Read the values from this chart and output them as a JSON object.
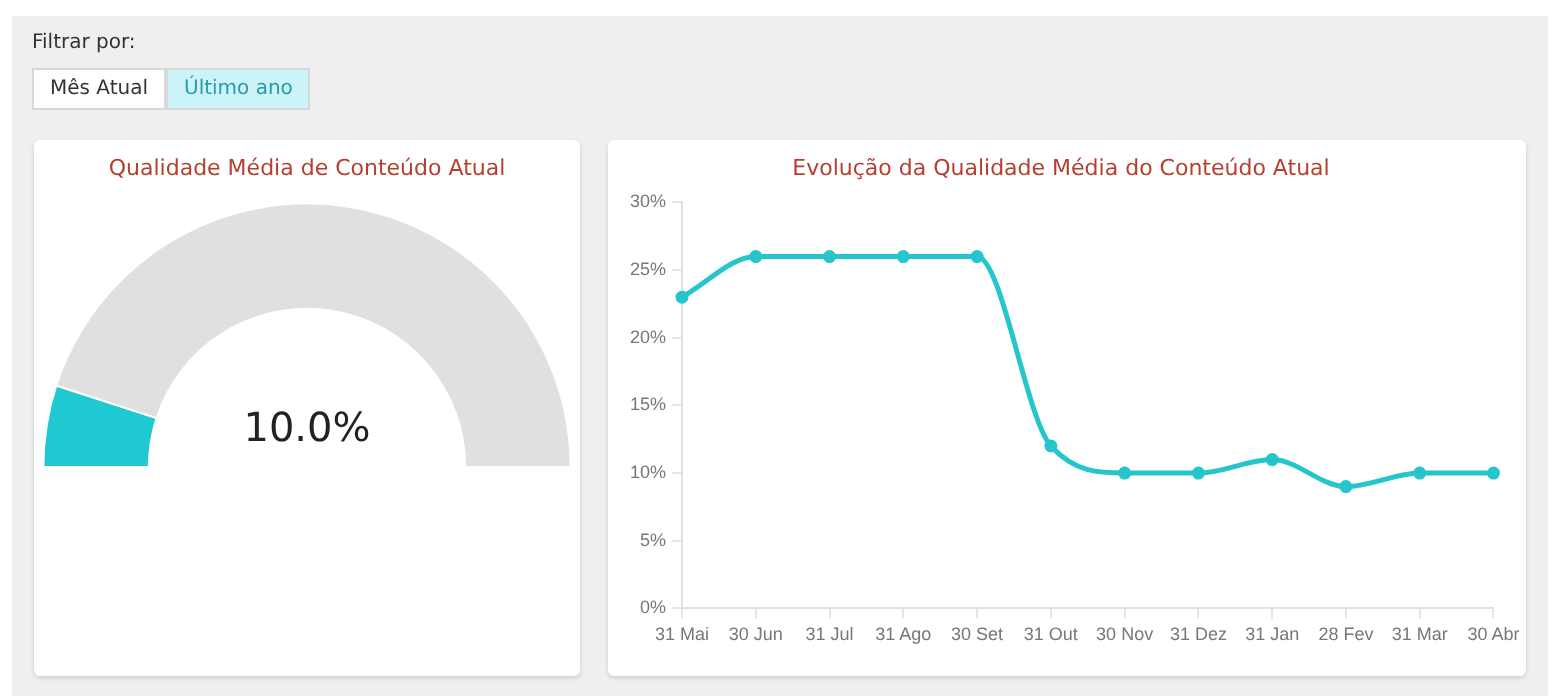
{
  "chart_data": [
    {
      "type": "other",
      "title": "Filtrar por:",
      "annotations": [
        "Mês Atual",
        "Último ano"
      ]
    },
    {
      "type": "donut",
      "title": "Qualidade Média de Conteúdo Atual",
      "categories": [
        null,
        null
      ],
      "values": [
        10,
        90
      ],
      "colors": [
        "#1fc9d1",
        "#e0e0e0"
      ],
      "annotations": [
        "10.0%"
      ],
      "legend": false
    },
    {
      "type": "line",
      "title": "Evolução da Qualidade Média do Conteúdo Atual",
      "categories": [
        "31 Mai",
        "30 Jun",
        "31 Jul",
        "31 Ago",
        "30 Set",
        "31 Out",
        "30 Nov",
        "31 Dez",
        "31 Jan",
        "28 Fev",
        "31 Mar",
        "30 Abr"
      ],
      "series": [
        {
          "color": "#26c5cb",
          "values": [
            23,
            26,
            26,
            26,
            26,
            12,
            10,
            10,
            11,
            9,
            10,
            10
          ]
        }
      ],
      "ylim": [
        0,
        30
      ],
      "yticks": [
        {
          "value": 0,
          "label": "0%"
        },
        {
          "value": 5,
          "label": "5%"
        },
        {
          "value": 10,
          "label": "10%"
        },
        {
          "value": 15,
          "label": "15%"
        },
        {
          "value": 20,
          "label": "20%"
        },
        {
          "value": 25,
          "label": "25%"
        },
        {
          "value": 30,
          "label": "30%"
        }
      ],
      "grid": false,
      "legend": false,
      "marker": "circle",
      "line_style": "solid"
    }
  ]
}
